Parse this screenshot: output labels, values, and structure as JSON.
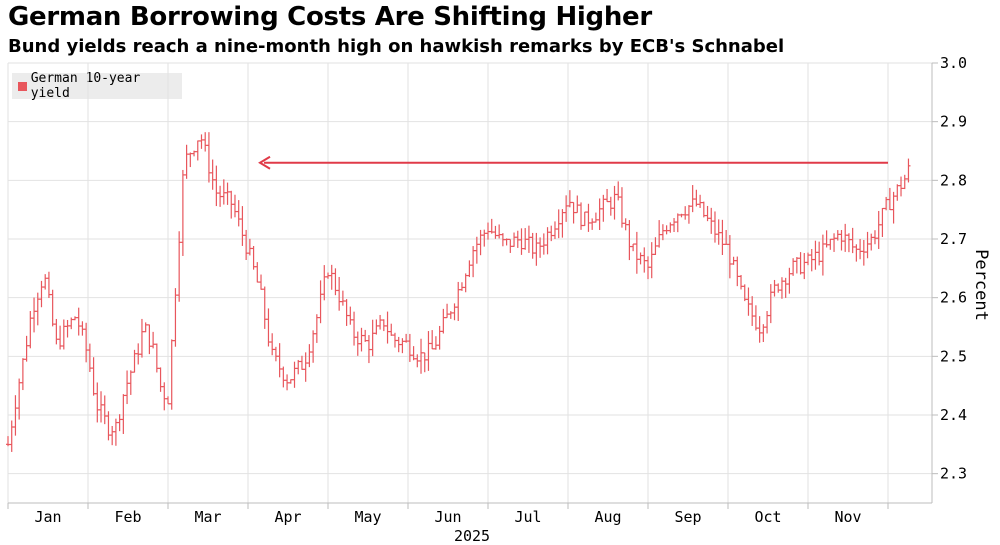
{
  "header": {
    "title": "German Borrowing Costs Are Shifting Higher",
    "subtitle": "Bund yields reach a nine-month high on hawkish remarks by ECB's Schnabel"
  },
  "colors": {
    "series": "#e8565c",
    "grid": "#e2e2e2",
    "axis": "#bcbcbc",
    "arrow": "#e03a48"
  },
  "chart_data": {
    "type": "line",
    "style": "daily OHLC bars",
    "title": "German Borrowing Costs Are Shifting Higher",
    "subtitle": "Bund yields reach a nine-month high on hawkish remarks by ECB's Schnabel",
    "xlabel": "2025",
    "ylabel": "Percent",
    "ylim": [
      2.25,
      3.0
    ],
    "yticks": [
      "3.0",
      "2.9",
      "2.8",
      "2.7",
      "2.6",
      "2.5",
      "2.4",
      "2.3"
    ],
    "categories": [
      "Jan",
      "Feb",
      "Mar",
      "Apr",
      "May",
      "Jun",
      "Jul",
      "Aug",
      "Sep",
      "Oct",
      "Nov"
    ],
    "year_label": "2025",
    "grid": true,
    "legend": {
      "position": "top-left",
      "entries": [
        "German 10-year yield"
      ]
    },
    "annotation": {
      "type": "arrow",
      "level": 2.83,
      "from": "Dec",
      "to": "Mar",
      "meaning": "nine-month high"
    },
    "series": [
      {
        "name": "German 10-year yield",
        "anchors_x": [
          0,
          0.1,
          0.2,
          0.3,
          0.45,
          0.6,
          0.85,
          1.0,
          1.1,
          1.25,
          1.35,
          1.45,
          1.6,
          1.7,
          1.8,
          1.92,
          2.0,
          2.2,
          2.4,
          2.6,
          2.8,
          3.0,
          3.15,
          3.3,
          3.5,
          3.7,
          3.85,
          4.0,
          4.15,
          4.3,
          4.5,
          4.7,
          4.8,
          5.0,
          5.15,
          5.3,
          5.5,
          5.65,
          5.8,
          6.0,
          6.2,
          6.4,
          6.6,
          6.8,
          7.0,
          7.2,
          7.4,
          7.6,
          7.8,
          8.0,
          8.2,
          8.4,
          8.6,
          8.8,
          9.0,
          9.2,
          9.4,
          9.6,
          9.8,
          10.0,
          10.2,
          10.4,
          10.6,
          10.8,
          11.0,
          11.2,
          11.3
        ],
        "anchors_y": [
          2.35,
          2.43,
          2.5,
          2.58,
          2.64,
          2.52,
          2.57,
          2.5,
          2.42,
          2.38,
          2.38,
          2.44,
          2.5,
          2.55,
          2.52,
          2.44,
          2.43,
          2.83,
          2.88,
          2.78,
          2.76,
          2.68,
          2.61,
          2.5,
          2.46,
          2.49,
          2.56,
          2.65,
          2.6,
          2.54,
          2.52,
          2.56,
          2.53,
          2.52,
          2.5,
          2.51,
          2.57,
          2.62,
          2.68,
          2.72,
          2.69,
          2.7,
          2.68,
          2.72,
          2.77,
          2.73,
          2.75,
          2.77,
          2.68,
          2.65,
          2.72,
          2.75,
          2.76,
          2.72,
          2.68,
          2.59,
          2.55,
          2.62,
          2.65,
          2.66,
          2.68,
          2.71,
          2.68,
          2.7,
          2.76,
          2.8,
          2.83
        ]
      }
    ]
  }
}
